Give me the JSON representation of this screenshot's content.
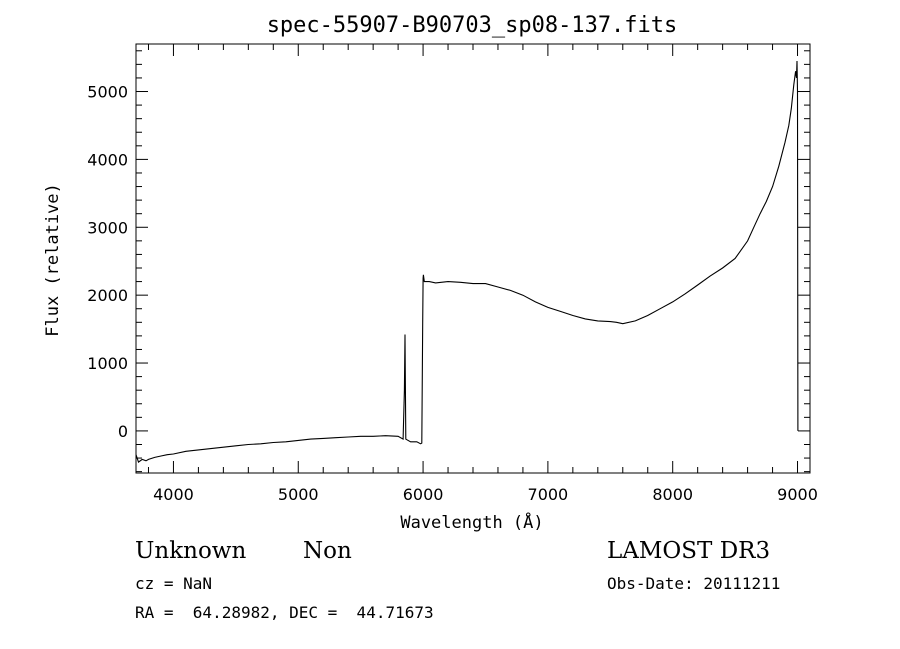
{
  "chart_data": {
    "type": "line",
    "title": "spec-55907-B90703_sp08-137.fits",
    "xlabel": "Wavelength (Å)",
    "ylabel": "Flux (relative)",
    "xlim": [
      3700,
      9100
    ],
    "ylim": [
      -620,
      5700
    ],
    "xticks": [
      4000,
      5000,
      6000,
      7000,
      8000,
      9000
    ],
    "yticks": [
      0,
      1000,
      2000,
      3000,
      4000,
      5000
    ],
    "x_minor_step": 200,
    "y_minor_step": 200,
    "grid": false,
    "legend": "none",
    "line_color": "#000000",
    "series": [
      {
        "x": [
          3700,
          3720,
          3750,
          3780,
          3800,
          3850,
          3900,
          3950,
          4000,
          4100,
          4200,
          4300,
          4400,
          4500,
          4600,
          4700,
          4800,
          4900,
          5000,
          5100,
          5200,
          5300,
          5400,
          5500,
          5600,
          5700,
          5800,
          5840,
          5850,
          5855,
          5862,
          5870,
          5900,
          5950,
          5980,
          5990,
          5997,
          6000,
          6003,
          6010,
          6050,
          6100,
          6200,
          6300,
          6400,
          6500,
          6600,
          6700,
          6800,
          6900,
          7000,
          7100,
          7200,
          7300,
          7400,
          7500,
          7550,
          7600,
          7700,
          7800,
          7900,
          8000,
          8100,
          8200,
          8300,
          8400,
          8500,
          8600,
          8650,
          8700,
          8750,
          8800,
          8850,
          8900,
          8930,
          8950,
          8970,
          8985,
          8992,
          8996,
          9000,
          9003
        ],
        "y": [
          -350,
          -460,
          -420,
          -440,
          -420,
          -390,
          -370,
          -350,
          -340,
          -300,
          -280,
          -260,
          -240,
          -220,
          -200,
          -190,
          -170,
          -160,
          -140,
          -120,
          -110,
          -100,
          -90,
          -80,
          -80,
          -70,
          -80,
          -120,
          600,
          1420,
          -120,
          -130,
          -160,
          -160,
          -190,
          -180,
          1600,
          2250,
          2300,
          2200,
          2200,
          2180,
          2200,
          2190,
          2170,
          2170,
          2120,
          2070,
          2000,
          1900,
          1820,
          1760,
          1700,
          1650,
          1620,
          1610,
          1600,
          1580,
          1620,
          1700,
          1800,
          1900,
          2020,
          2150,
          2280,
          2400,
          2540,
          2800,
          3000,
          3200,
          3380,
          3600,
          3900,
          4250,
          4500,
          4750,
          5100,
          5300,
          5200,
          5450,
          5000,
          0
        ]
      }
    ]
  },
  "info": {
    "class_label": "Unknown",
    "subclass_label": "Non",
    "redshift": "cz = NaN",
    "coords": "RA =  64.28982, DEC =  44.71673",
    "survey": "LAMOST DR3",
    "obs_date": "Obs-Date: 20111211"
  }
}
